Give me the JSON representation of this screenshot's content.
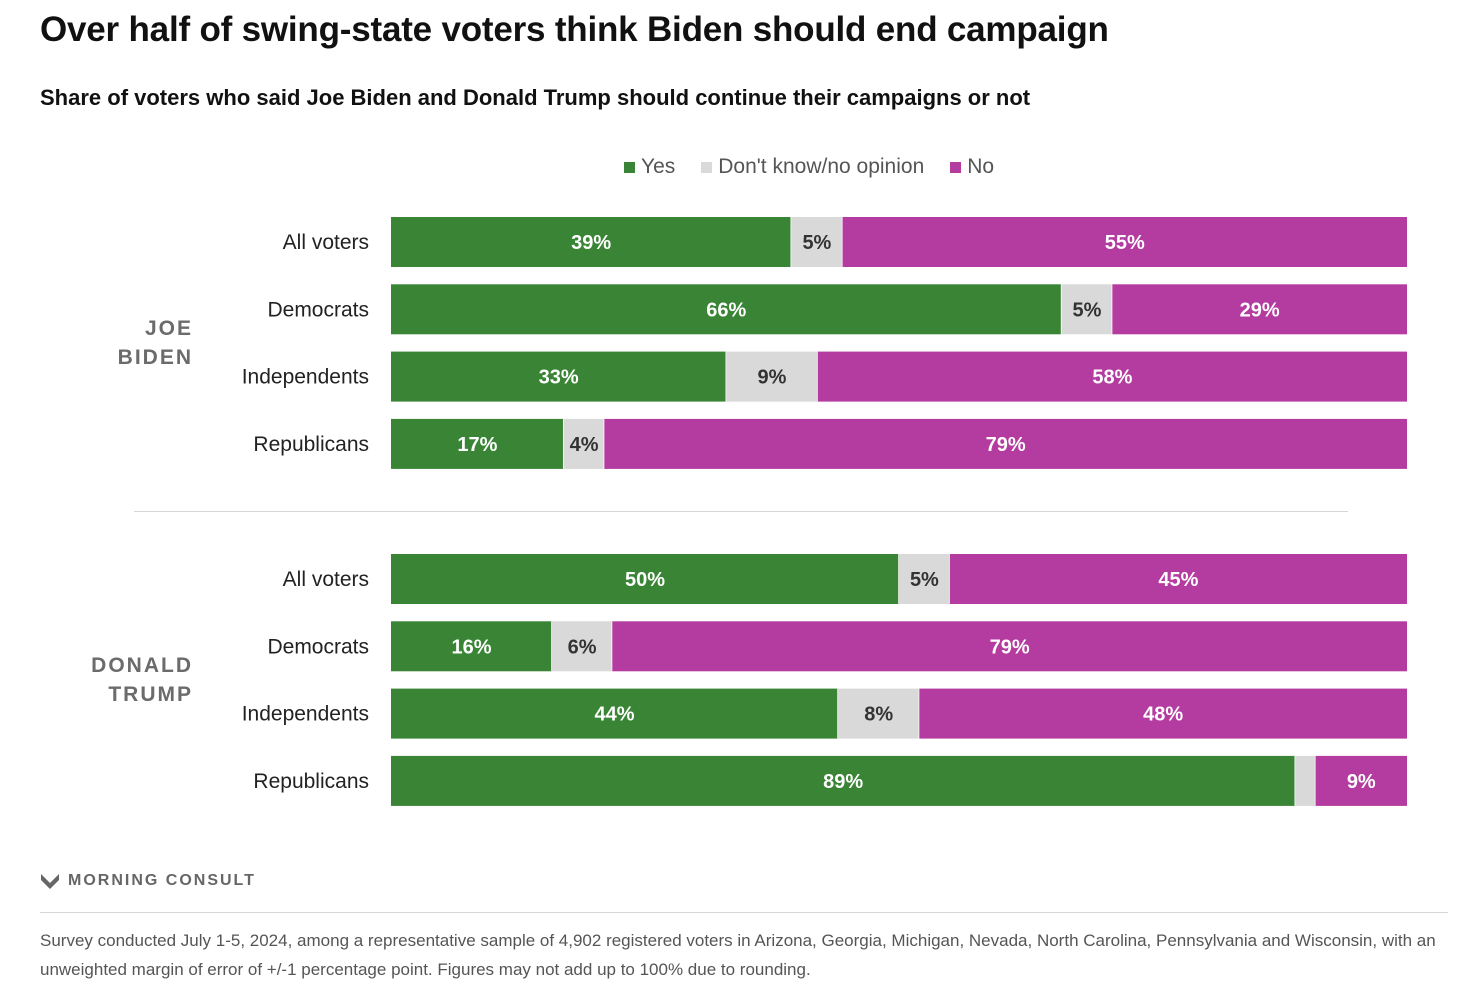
{
  "title": "Over half of swing-state voters think Biden should end campaign",
  "subtitle": "Share of voters who said Joe Biden and Donald Trump should continue their campaigns or not",
  "legend": [
    {
      "label": "Yes",
      "color": "#3a8435"
    },
    {
      "label": "Don't know/no opinion",
      "color": "#d9d9d9"
    },
    {
      "label": "No",
      "color": "#b43b9f"
    }
  ],
  "brand": "MORNING CONSULT",
  "footnote": "Survey conducted July 1-5, 2024, among a representative sample of 4,902 registered voters in Arizona, Georgia, Michigan, Nevada, North Carolina, Pennsylvania and Wisconsin, with an unweighted margin of error of +/-1 percentage point. Figures may not add up to 100% due to rounding.",
  "chart_data": {
    "type": "bar",
    "orientation": "horizontal-stacked-100",
    "series_names": [
      "Yes",
      "Don't know/no opinion",
      "No"
    ],
    "colors": [
      "#3a8435",
      "#d9d9d9",
      "#b43b9f"
    ],
    "groups": [
      {
        "label_lines": [
          "JOE",
          "BIDEN"
        ],
        "rows": [
          {
            "category": "All voters",
            "values": [
              39,
              5,
              55
            ],
            "labels": [
              "39%",
              "5%",
              "55%"
            ]
          },
          {
            "category": "Democrats",
            "values": [
              66,
              5,
              29
            ],
            "labels": [
              "66%",
              "5%",
              "29%"
            ]
          },
          {
            "category": "Independents",
            "values": [
              33,
              9,
              58
            ],
            "labels": [
              "33%",
              "9%",
              "58%"
            ]
          },
          {
            "category": "Republicans",
            "values": [
              17,
              4,
              79
            ],
            "labels": [
              "17%",
              "4%",
              "79%"
            ]
          }
        ]
      },
      {
        "label_lines": [
          "DONALD",
          "TRUMP"
        ],
        "rows": [
          {
            "category": "All voters",
            "values": [
              50,
              5,
              45
            ],
            "labels": [
              "50%",
              "5%",
              "45%"
            ]
          },
          {
            "category": "Democrats",
            "values": [
              16,
              6,
              79
            ],
            "labels": [
              "16%",
              "6%",
              "79%"
            ]
          },
          {
            "category": "Independents",
            "values": [
              44,
              8,
              48
            ],
            "labels": [
              "44%",
              "8%",
              "48%"
            ]
          },
          {
            "category": "Republicans",
            "values": [
              89,
              2,
              9
            ],
            "labels": [
              "89%",
              "",
              "9%"
            ]
          }
        ]
      }
    ]
  }
}
